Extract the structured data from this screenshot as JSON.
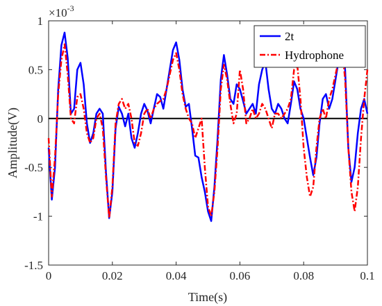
{
  "chart_data": {
    "type": "line",
    "xlabel": "Time(s)",
    "ylabel": "Amplitude(V)",
    "y_exponent_label": "×10",
    "y_exponent_power": "-3",
    "xlim": [
      0,
      0.1
    ],
    "ylim": [
      -1.5,
      1
    ],
    "x_ticks": [
      0,
      0.02,
      0.04,
      0.06,
      0.08,
      0.1
    ],
    "x_tick_labels": [
      "0",
      "0.02",
      "0.04",
      "0.06",
      "0.08",
      "0.1"
    ],
    "y_ticks": [
      -1.5,
      -1,
      -0.5,
      0,
      0.5,
      1
    ],
    "y_tick_labels": [
      "-1.5",
      "-1",
      "-0.5",
      "0",
      "0.5",
      "1"
    ],
    "grid": false,
    "legend_position": "top-right",
    "zero_line": true,
    "series": [
      {
        "name": "2t",
        "color": "#0000ff",
        "style": "solid",
        "x": [
          0,
          0.001,
          0.002,
          0.003,
          0.004,
          0.005,
          0.006,
          0.007,
          0.008,
          0.009,
          0.01,
          0.011,
          0.012,
          0.013,
          0.014,
          0.015,
          0.016,
          0.017,
          0.018,
          0.019,
          0.02,
          0.021,
          0.022,
          0.023,
          0.024,
          0.025,
          0.026,
          0.027,
          0.028,
          0.029,
          0.03,
          0.031,
          0.032,
          0.033,
          0.034,
          0.035,
          0.036,
          0.037,
          0.038,
          0.039,
          0.04,
          0.041,
          0.042,
          0.043,
          0.044,
          0.045,
          0.046,
          0.047,
          0.048,
          0.049,
          0.05,
          0.051,
          0.052,
          0.053,
          0.054,
          0.055,
          0.056,
          0.057,
          0.058,
          0.059,
          0.06,
          0.061,
          0.062,
          0.063,
          0.064,
          0.065,
          0.066,
          0.067,
          0.068,
          0.069,
          0.07,
          0.071,
          0.072,
          0.073,
          0.074,
          0.075,
          0.076,
          0.077,
          0.078,
          0.079,
          0.08,
          0.081,
          0.082,
          0.083,
          0.084,
          0.085,
          0.086,
          0.087,
          0.088,
          0.089,
          0.09,
          0.091,
          0.092,
          0.093,
          0.094,
          0.095,
          0.096,
          0.097,
          0.098,
          0.099,
          0.1
        ],
        "y": [
          -0.3,
          -0.83,
          -0.5,
          0.3,
          0.75,
          0.88,
          0.62,
          0.05,
          0.1,
          0.5,
          0.57,
          0.35,
          -0.05,
          -0.25,
          -0.15,
          0.05,
          0.1,
          0.05,
          -0.55,
          -1.02,
          -0.75,
          -0.1,
          0.12,
          0.05,
          -0.08,
          0.05,
          -0.2,
          -0.3,
          -0.15,
          0.05,
          0.15,
          0.08,
          -0.05,
          0.1,
          0.25,
          0.22,
          0.1,
          0.3,
          0.5,
          0.7,
          0.78,
          0.6,
          0.3,
          0.12,
          0.15,
          -0.1,
          -0.38,
          -0.4,
          -0.6,
          -0.75,
          -0.95,
          -1.05,
          -0.7,
          -0.2,
          0.4,
          0.65,
          0.45,
          0.2,
          0.15,
          0.35,
          0.3,
          0.18,
          0.05,
          0.1,
          0.15,
          0.05,
          0.35,
          0.5,
          0.58,
          0.3,
          0.1,
          0.05,
          0.15,
          0.1,
          0.0,
          -0.05,
          0.15,
          0.38,
          0.3,
          0.1,
          0.0,
          -0.2,
          -0.4,
          -0.58,
          -0.4,
          -0.05,
          0.2,
          0.25,
          0.1,
          0.2,
          0.4,
          0.6,
          0.93,
          0.5,
          -0.3,
          -0.65,
          -0.5,
          -0.15,
          0.1,
          0.2,
          0.05
        ]
      },
      {
        "name": "Hydrophone",
        "color": "#ff0000",
        "style": "dashdot",
        "x": [
          0,
          0.001,
          0.002,
          0.003,
          0.004,
          0.005,
          0.006,
          0.007,
          0.008,
          0.009,
          0.01,
          0.011,
          0.012,
          0.013,
          0.014,
          0.015,
          0.016,
          0.017,
          0.018,
          0.019,
          0.02,
          0.021,
          0.022,
          0.023,
          0.024,
          0.025,
          0.026,
          0.027,
          0.028,
          0.029,
          0.03,
          0.031,
          0.032,
          0.033,
          0.034,
          0.035,
          0.036,
          0.037,
          0.038,
          0.039,
          0.04,
          0.041,
          0.042,
          0.043,
          0.044,
          0.045,
          0.046,
          0.047,
          0.048,
          0.049,
          0.05,
          0.051,
          0.052,
          0.053,
          0.054,
          0.055,
          0.056,
          0.057,
          0.058,
          0.059,
          0.06,
          0.061,
          0.062,
          0.063,
          0.064,
          0.065,
          0.066,
          0.067,
          0.068,
          0.069,
          0.07,
          0.071,
          0.072,
          0.073,
          0.074,
          0.075,
          0.076,
          0.077,
          0.078,
          0.079,
          0.08,
          0.081,
          0.082,
          0.083,
          0.084,
          0.085,
          0.086,
          0.087,
          0.088,
          0.089,
          0.09,
          0.091,
          0.092,
          0.093,
          0.094,
          0.095,
          0.096,
          0.097,
          0.098,
          0.099,
          0.1
        ],
        "y": [
          -0.2,
          -0.8,
          -0.4,
          0.25,
          0.6,
          0.76,
          0.45,
          0.0,
          -0.05,
          0.22,
          0.25,
          0.1,
          -0.15,
          -0.25,
          -0.2,
          0.0,
          0.05,
          -0.1,
          -0.6,
          -1.02,
          -0.7,
          -0.05,
          0.15,
          0.2,
          0.1,
          0.15,
          0.0,
          -0.25,
          -0.28,
          -0.15,
          0.05,
          0.1,
          0.0,
          0.1,
          0.15,
          0.18,
          0.2,
          0.3,
          0.45,
          0.6,
          0.67,
          0.5,
          0.25,
          0.1,
          0.0,
          -0.05,
          -0.2,
          -0.1,
          0.0,
          -0.5,
          -0.9,
          -1.0,
          -0.75,
          -0.3,
          0.3,
          0.55,
          0.4,
          0.15,
          -0.05,
          0.05,
          0.5,
          0.3,
          -0.05,
          0.0,
          0.1,
          0.0,
          0.05,
          0.15,
          0.1,
          0.0,
          -0.1,
          0.05,
          0.05,
          0.0,
          0.05,
          0.1,
          0.2,
          0.5,
          0.55,
          0.2,
          -0.3,
          -0.6,
          -0.8,
          -0.7,
          -0.3,
          0.0,
          0.1,
          0.0,
          0.2,
          0.3,
          0.45,
          0.6,
          0.75,
          0.4,
          -0.3,
          -0.75,
          -0.95,
          -0.7,
          -0.2,
          0.2,
          0.5
        ]
      }
    ]
  }
}
